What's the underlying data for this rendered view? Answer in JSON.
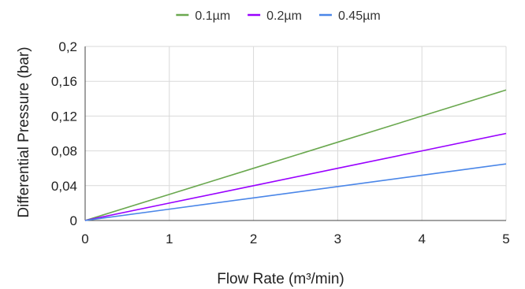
{
  "chart_data": {
    "type": "line",
    "xlabel": "Flow Rate (m³/min)",
    "ylabel": "Differential Pressure (bar)",
    "x": [
      0,
      1,
      2,
      3,
      4,
      5
    ],
    "xlim": [
      0,
      5
    ],
    "ylim": [
      0,
      0.2
    ],
    "x_ticks": [
      0,
      1,
      2,
      3,
      4,
      5
    ],
    "x_tick_labels": [
      "0",
      "1",
      "2",
      "3",
      "4",
      "5"
    ],
    "y_ticks": [
      0,
      0.04,
      0.08,
      0.12,
      0.16,
      0.2
    ],
    "y_tick_labels": [
      "0",
      "0,04",
      "0,08",
      "0,12",
      "0,16",
      "0,2"
    ],
    "grid": true,
    "legend_position": "top",
    "series": [
      {
        "name": "0.1µm",
        "color": "#6aa84f",
        "values": [
          0,
          0.03,
          0.06,
          0.09,
          0.12,
          0.15
        ]
      },
      {
        "name": "0.2µm",
        "color": "#9900ff",
        "values": [
          0,
          0.02,
          0.04,
          0.06,
          0.08,
          0.1
        ]
      },
      {
        "name": "0.45µm",
        "color": "#4a86e8",
        "values": [
          0,
          0.013,
          0.026,
          0.039,
          0.052,
          0.065
        ]
      }
    ]
  }
}
